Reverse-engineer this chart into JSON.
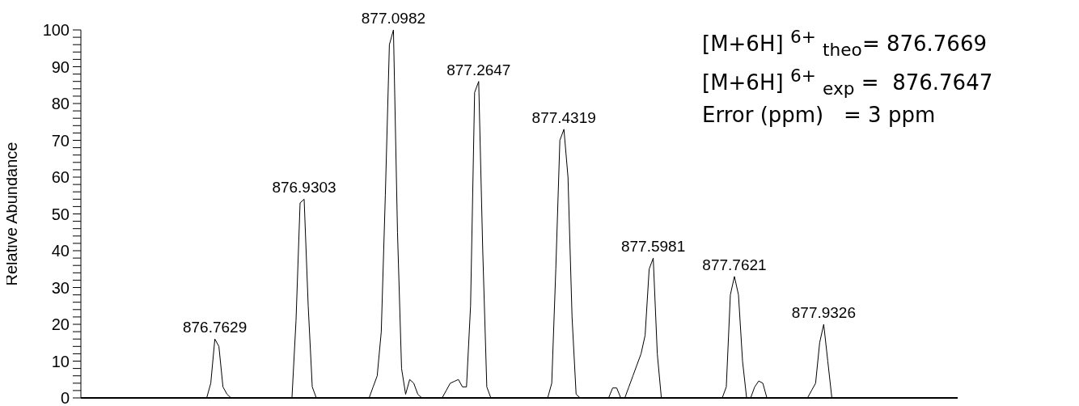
{
  "chart_data": {
    "type": "line",
    "ylabel": "Relative Abundance",
    "color": "#000000",
    "categories": [
      null,
      null,
      null,
      null,
      null,
      null,
      null,
      null,
      null,
      null,
      null,
      null,
      null,
      null,
      null,
      null,
      null,
      null,
      null,
      null,
      null,
      null,
      null,
      null,
      null,
      null,
      null,
      null,
      null,
      null,
      null,
      null,
      null,
      null,
      null,
      null,
      null,
      null,
      null,
      null,
      null,
      null,
      null,
      null,
      null,
      null,
      null,
      null,
      null,
      null,
      null,
      null,
      null,
      null,
      null,
      null,
      null,
      null,
      null,
      null,
      null,
      null,
      null,
      null,
      null,
      null,
      null,
      null,
      null,
      null,
      null,
      null,
      null,
      null,
      null,
      null,
      null,
      null,
      null,
      null,
      null,
      null,
      null,
      null,
      null,
      null,
      null,
      null,
      null,
      null,
      null,
      null,
      null,
      null,
      null,
      null,
      null,
      null,
      null,
      null,
      null,
      null,
      null,
      null,
      null,
      null,
      null,
      null,
      null,
      null,
      null,
      null,
      null,
      null,
      null,
      null,
      null,
      null,
      null,
      null,
      null,
      null,
      null,
      null,
      null,
      null,
      null,
      null,
      null,
      null,
      null,
      null,
      null,
      null,
      null,
      null,
      null,
      null,
      null,
      null,
      null,
      null,
      null,
      null,
      null,
      null,
      null,
      null,
      null,
      null,
      null,
      null,
      null,
      null,
      null,
      null,
      null,
      null,
      null,
      null,
      null,
      null,
      null,
      null,
      null,
      null,
      null,
      null,
      null,
      null,
      null,
      null,
      null,
      null,
      null,
      null,
      null,
      null,
      null,
      null,
      null,
      null,
      null,
      null,
      null,
      null,
      null,
      null,
      null,
      null,
      null,
      null,
      null,
      null,
      null,
      null,
      null,
      null,
      null,
      null,
      null,
      null,
      null,
      null,
      null,
      null,
      null,
      null,
      null,
      null,
      null,
      null,
      null,
      null,
      null,
      null,
      null
    ],
    "values": [
      0,
      0,
      0,
      0,
      0,
      0,
      0,
      0,
      0,
      0,
      0,
      0,
      0,
      0,
      0,
      0,
      0,
      0,
      0,
      0,
      0,
      0,
      0,
      0,
      0,
      0,
      0,
      0,
      0,
      0,
      0,
      0,
      4,
      16,
      14,
      3,
      1,
      0,
      0,
      0,
      0,
      0,
      0,
      0,
      0,
      0,
      0,
      0,
      0,
      0,
      0,
      0,
      0,
      21,
      53,
      54,
      25,
      3,
      0,
      0,
      0,
      0,
      0,
      0,
      0,
      0,
      0,
      0,
      0,
      0,
      0,
      0,
      3,
      6,
      18,
      55,
      96,
      100,
      45,
      8,
      1,
      5,
      4,
      1,
      0,
      0,
      0,
      0,
      0,
      0,
      2,
      4,
      4.5,
      5,
      3,
      3,
      25,
      83,
      86,
      40,
      3,
      0,
      0,
      0,
      0,
      0,
      0,
      0,
      0,
      0,
      0,
      0,
      0,
      0,
      0,
      0,
      4,
      35,
      70,
      73,
      60,
      22,
      1,
      0,
      0,
      0,
      0,
      0,
      0,
      0,
      0,
      2.7,
      2.7,
      0,
      0,
      3,
      6,
      9,
      12,
      17,
      35,
      38,
      12,
      0,
      0,
      0,
      0,
      0,
      0,
      0,
      0,
      0,
      0,
      0,
      0,
      0,
      0,
      0,
      0,
      3,
      28,
      33,
      28,
      10,
      0,
      0,
      3,
      4.6,
      4,
      0,
      0,
      0,
      0,
      0,
      0,
      0,
      0,
      0,
      0,
      0,
      2,
      4,
      15,
      20,
      10,
      0,
      0,
      0,
      0,
      0,
      0,
      0,
      0,
      0,
      0,
      0,
      0,
      0,
      0,
      0,
      0,
      0,
      0,
      0,
      0,
      0,
      0,
      0,
      0,
      0,
      0,
      0,
      0,
      0,
      0,
      0,
      0
    ],
    "ylim": [
      0,
      100
    ],
    "yticks": [
      0,
      {
        "value": 2,
        "label": null
      },
      {
        "value": 4,
        "label": null
      },
      {
        "value": 6,
        "label": null
      },
      {
        "value": 8,
        "label": null
      },
      10,
      {
        "value": 12,
        "label": null
      },
      {
        "value": 14,
        "label": null
      },
      {
        "value": 16,
        "label": null
      },
      {
        "value": 18,
        "label": null
      },
      20,
      {
        "value": 22,
        "label": null
      },
      {
        "value": 24,
        "label": null
      },
      {
        "value": 26,
        "label": null
      },
      {
        "value": 28,
        "label": null
      },
      30,
      {
        "value": 32,
        "label": null
      },
      {
        "value": 34,
        "label": null
      },
      {
        "value": 36,
        "label": null
      },
      {
        "value": 38,
        "label": null
      },
      40,
      {
        "value": 42,
        "label": null
      },
      {
        "value": 44,
        "label": null
      },
      {
        "value": 46,
        "label": null
      },
      {
        "value": 48,
        "label": null
      },
      50,
      {
        "value": 52,
        "label": null
      },
      {
        "value": 54,
        "label": null
      },
      {
        "value": 56,
        "label": null
      },
      {
        "value": 58,
        "label": null
      },
      60,
      {
        "value": 62,
        "label": null
      },
      {
        "value": 64,
        "label": null
      },
      {
        "value": 66,
        "label": null
      },
      {
        "value": 68,
        "label": null
      },
      70,
      {
        "value": 72,
        "label": null
      },
      {
        "value": 74,
        "label": null
      },
      {
        "value": 76,
        "label": null
      },
      {
        "value": 78,
        "label": null
      },
      80,
      {
        "value": 82,
        "label": null
      },
      {
        "value": 84,
        "label": null
      },
      {
        "value": 86,
        "label": null
      },
      {
        "value": 88,
        "label": null
      },
      90,
      {
        "value": 92,
        "label": null
      },
      {
        "value": 94,
        "label": null
      },
      {
        "value": 96,
        "label": null
      },
      {
        "value": 98,
        "label": null
      },
      100
    ],
    "annotations": [
      {
        "text": "876.7629",
        "y": 16
      },
      {
        "text": "876.9303",
        "y": 54
      },
      {
        "text": "877.0982",
        "y": 100
      },
      {
        "text": "877.2647",
        "y": 86
      },
      {
        "text": "877.4319",
        "y": 73
      },
      {
        "text": "877.5981",
        "y": 38
      },
      {
        "text": "877.7621",
        "y": 33
      },
      {
        "text": "877.9326",
        "y": 20
      },
      "[M+6H] $^{6+}$ $_{theo}$= 876.7669",
      "[M+6H] $^{6+}$ $_{exp}$ =  876.7647",
      "Error (ppm)   = 3 ppm"
    ]
  }
}
